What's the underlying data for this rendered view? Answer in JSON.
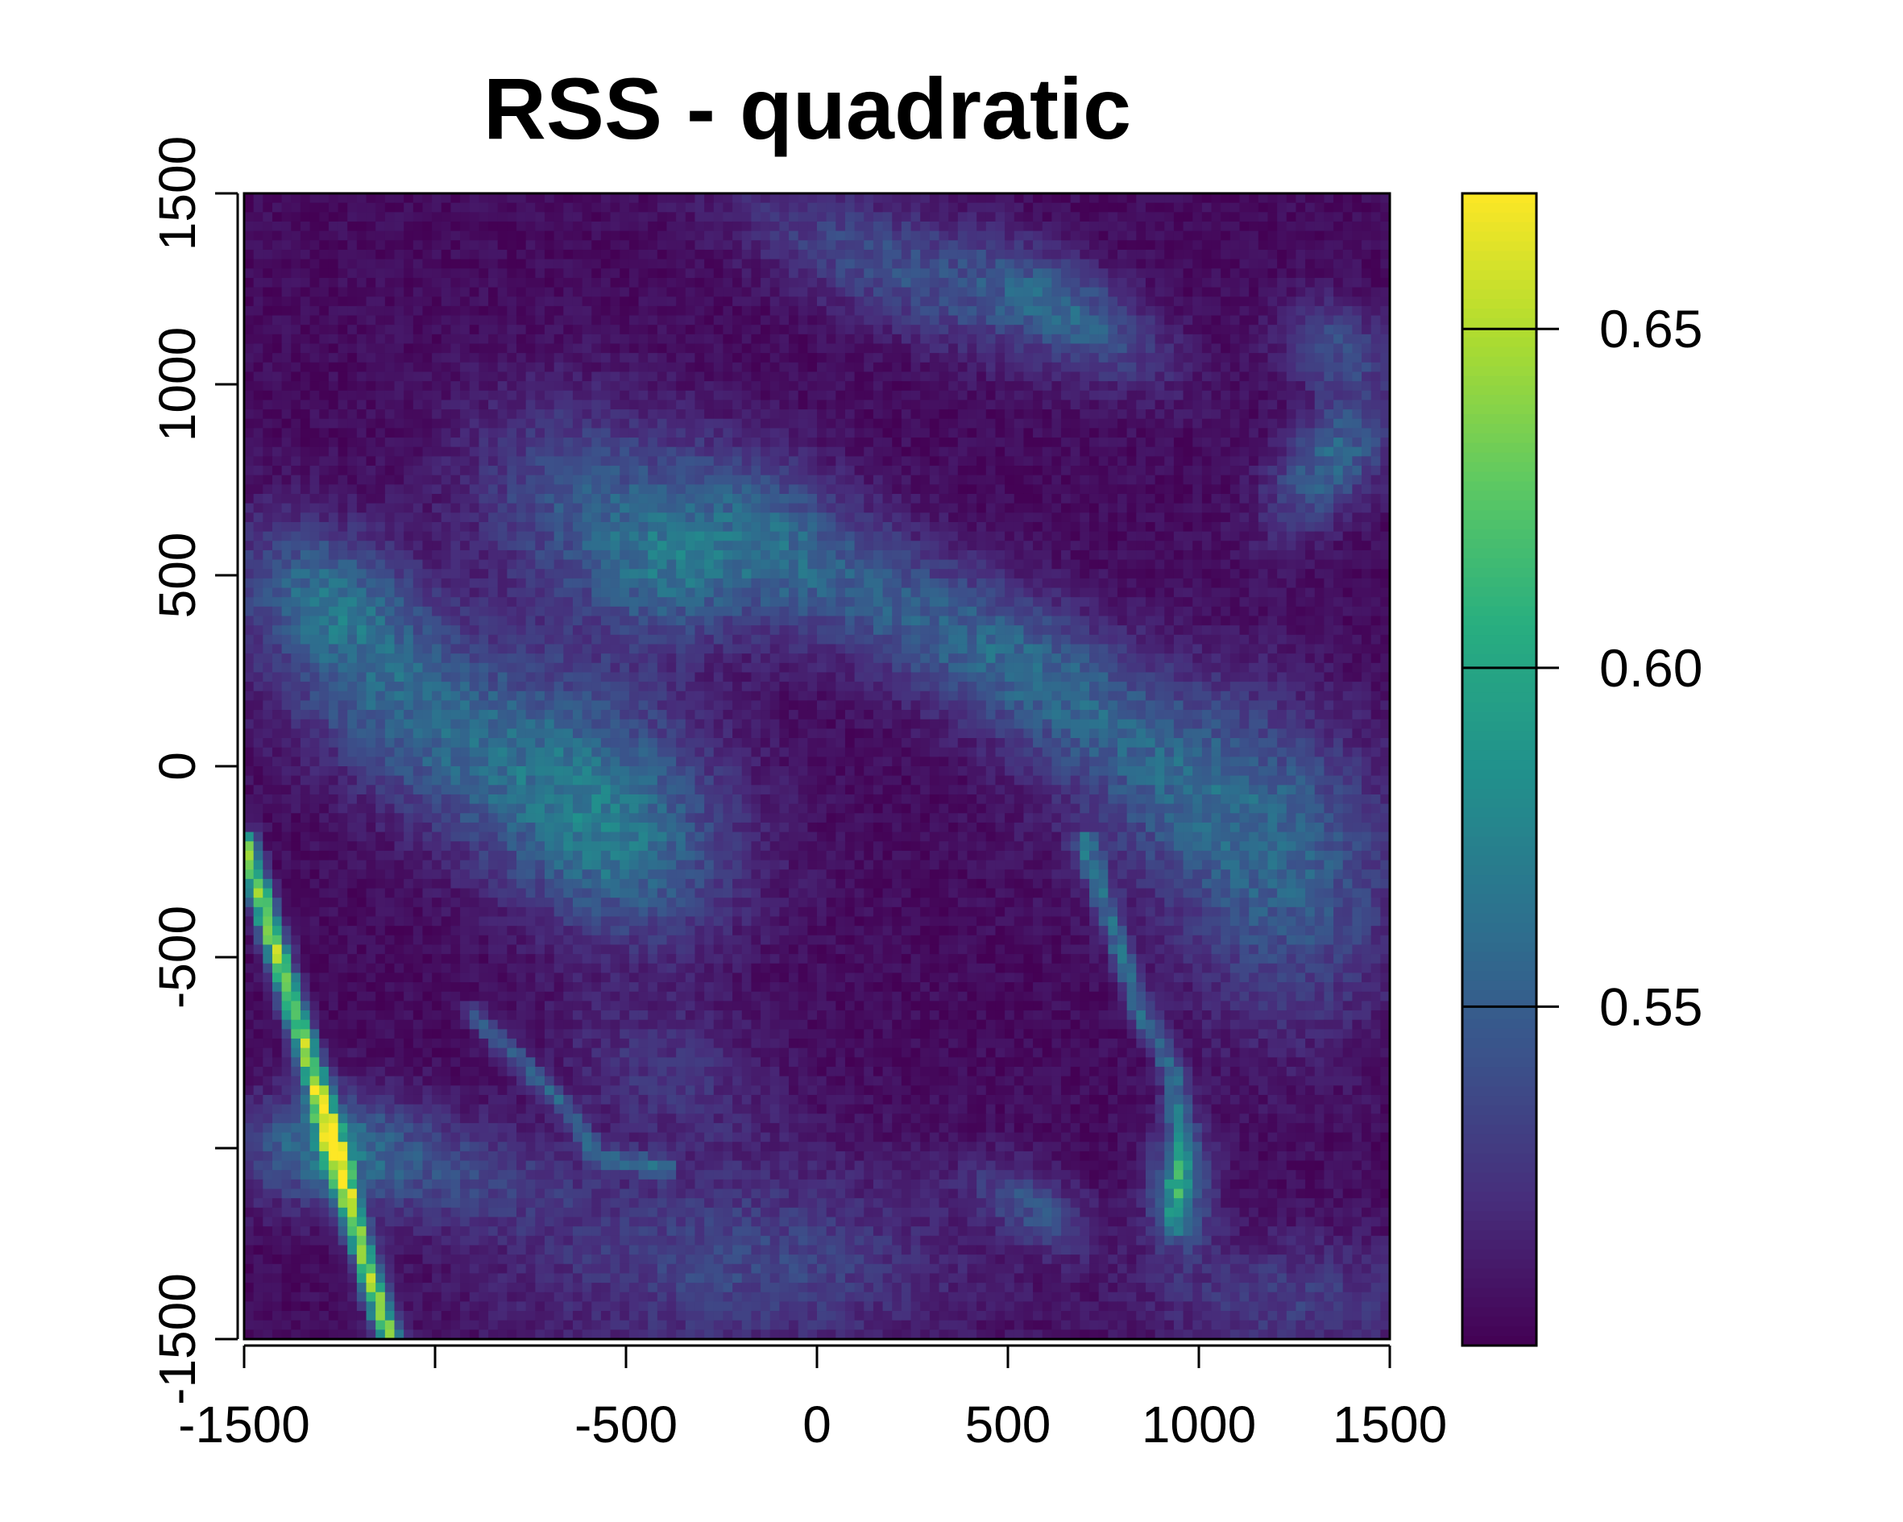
{
  "chart_data": {
    "type": "heatmap",
    "title": "RSS - quadratic",
    "xlabel": "",
    "ylabel": "",
    "xlim": [
      -1500,
      1500
    ],
    "ylim": [
      -1500,
      1500
    ],
    "x_ticks": [
      -1500,
      -1000,
      -500,
      0,
      500,
      1000,
      1500
    ],
    "x_tick_labels": [
      "-1500",
      "",
      "-500",
      "0",
      "500",
      "1000",
      "1500"
    ],
    "y_ticks": [
      -1500,
      -1000,
      -500,
      0,
      500,
      1000,
      1500
    ],
    "y_tick_labels": [
      "-1500",
      "",
      "-500",
      "0",
      "500",
      "1000",
      "1500"
    ],
    "colorbar": {
      "range": [
        0.5,
        0.67
      ],
      "ticks": [
        0.55,
        0.6,
        0.65
      ],
      "tick_labels": [
        "0.55",
        "0.60",
        "0.65"
      ],
      "palette": "viridis",
      "colors": [
        "#440154",
        "#472d7b",
        "#3b528b",
        "#2c728e",
        "#21918c",
        "#28ae80",
        "#5ec962",
        "#addc30",
        "#fde725"
      ]
    },
    "grid": false,
    "resolution": 122,
    "features": [
      {
        "kind": "base",
        "value": 0.505
      },
      {
        "kind": "blob",
        "x": -1270,
        "y": 450,
        "sx": 180,
        "sy": 120,
        "angle": -30,
        "value": 0.045
      },
      {
        "kind": "blob",
        "x": -1100,
        "y": 150,
        "sx": 280,
        "sy": 150,
        "angle": -35,
        "value": 0.04
      },
      {
        "kind": "blob",
        "x": -620,
        "y": 0,
        "sx": 280,
        "sy": 200,
        "angle": -30,
        "value": 0.045
      },
      {
        "kind": "blob",
        "x": -520,
        "y": -250,
        "sx": 200,
        "sy": 150,
        "angle": -20,
        "value": 0.035
      },
      {
        "kind": "blob",
        "x": -620,
        "y": 700,
        "sx": 220,
        "sy": 180,
        "angle": -25,
        "value": 0.035
      },
      {
        "kind": "blob",
        "x": -400,
        "y": 500,
        "sx": 150,
        "sy": 120,
        "angle": -20,
        "value": 0.035
      },
      {
        "kind": "blob",
        "x": -150,
        "y": 600,
        "sx": 200,
        "sy": 150,
        "angle": -30,
        "value": 0.035
      },
      {
        "kind": "blob",
        "x": 250,
        "y": 380,
        "sx": 350,
        "sy": 120,
        "angle": -30,
        "value": 0.035
      },
      {
        "kind": "blob",
        "x": 600,
        "y": 250,
        "sx": 250,
        "sy": 120,
        "angle": -35,
        "value": 0.03
      },
      {
        "kind": "blob",
        "x": 1000,
        "y": -50,
        "sx": 250,
        "sy": 200,
        "angle": -20,
        "value": 0.04
      },
      {
        "kind": "blob",
        "x": 1250,
        "y": -350,
        "sx": 200,
        "sy": 250,
        "angle": 0,
        "value": 0.035
      },
      {
        "kind": "blob",
        "x": 200,
        "y": 1300,
        "sx": 300,
        "sy": 100,
        "angle": -25,
        "value": 0.035
      },
      {
        "kind": "blob",
        "x": 650,
        "y": 1200,
        "sx": 200,
        "sy": 80,
        "angle": -30,
        "value": 0.045
      },
      {
        "kind": "blob",
        "x": 1350,
        "y": 800,
        "sx": 80,
        "sy": 150,
        "angle": -40,
        "value": 0.05
      },
      {
        "kind": "blob",
        "x": 1350,
        "y": 1100,
        "sx": 100,
        "sy": 80,
        "angle": -30,
        "value": 0.035
      },
      {
        "kind": "blob",
        "x": -1300,
        "y": -1000,
        "sx": 150,
        "sy": 100,
        "angle": 0,
        "value": 0.045
      },
      {
        "kind": "blob",
        "x": -1000,
        "y": -1050,
        "sx": 250,
        "sy": 100,
        "angle": -10,
        "value": 0.03
      },
      {
        "kind": "blob",
        "x": -200,
        "y": -1300,
        "sx": 400,
        "sy": 180,
        "angle": 0,
        "value": 0.03
      },
      {
        "kind": "blob",
        "x": -400,
        "y": -800,
        "sx": 200,
        "sy": 130,
        "angle": -20,
        "value": 0.02
      },
      {
        "kind": "blob",
        "x": 560,
        "y": -1150,
        "sx": 120,
        "sy": 60,
        "angle": -30,
        "value": 0.035
      },
      {
        "kind": "blob",
        "x": 950,
        "y": -1100,
        "sx": 60,
        "sy": 120,
        "angle": 0,
        "value": 0.05
      },
      {
        "kind": "blob",
        "x": 1250,
        "y": -1400,
        "sx": 250,
        "sy": 120,
        "angle": 0,
        "value": 0.025
      },
      {
        "kind": "line",
        "points": [
          [
            -1500,
            -200
          ],
          [
            -1320,
            -800
          ],
          [
            -1210,
            -1200
          ],
          [
            -1120,
            -1500
          ]
        ],
        "width": 22,
        "value": 0.13
      },
      {
        "kind": "line",
        "points": [
          [
            -900,
            -650
          ],
          [
            -650,
            -900
          ],
          [
            -580,
            -1020
          ],
          [
            -400,
            -1050
          ]
        ],
        "width": 20,
        "value": 0.04
      },
      {
        "kind": "line",
        "points": [
          [
            700,
            -200
          ],
          [
            800,
            -500
          ],
          [
            850,
            -650
          ],
          [
            930,
            -800
          ],
          [
            960,
            -1000
          ],
          [
            930,
            -1200
          ]
        ],
        "width": 22,
        "value": 0.05
      }
    ]
  }
}
